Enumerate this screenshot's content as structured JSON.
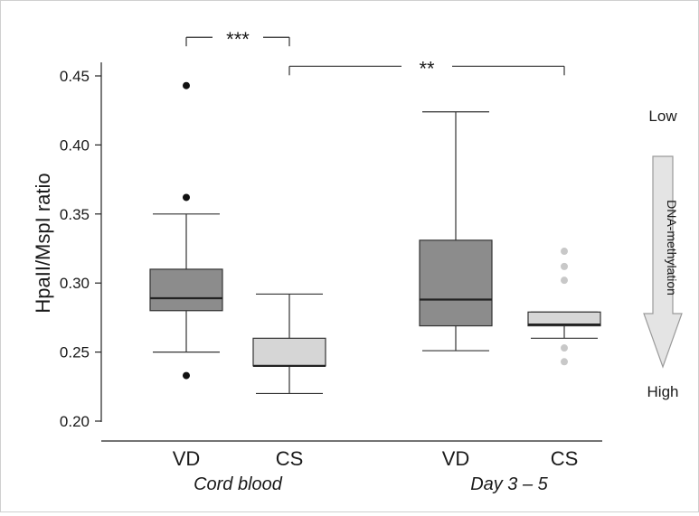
{
  "chart_data": {
    "type": "box",
    "ylabel": "HpaII/MspI ratio",
    "ylim": [
      0.2,
      0.45
    ],
    "yticks": [
      "0.45",
      "0.40",
      "0.35",
      "0.30",
      "0.25",
      "0.20"
    ],
    "groups": [
      {
        "label": "Cord blood",
        "categories": [
          "VD",
          "CS"
        ]
      },
      {
        "label": "Day 3 – 5",
        "categories": [
          "VD",
          "CS"
        ]
      }
    ],
    "boxes": [
      {
        "group": "Cord blood",
        "category": "VD",
        "color": "#8c8c8c",
        "whisker_low": 0.25,
        "q1": 0.28,
        "median": 0.289,
        "q3": 0.31,
        "whisker_high": 0.35,
        "outliers": [
          0.443,
          0.362,
          0.233
        ],
        "outlier_color": "#111111"
      },
      {
        "group": "Cord blood",
        "category": "CS",
        "color": "#d6d6d6",
        "whisker_low": 0.22,
        "q1": 0.24,
        "median": 0.24,
        "q3": 0.26,
        "whisker_high": 0.292,
        "outliers": [],
        "outlier_color": "#111111"
      },
      {
        "group": "Day 3 – 5",
        "category": "VD",
        "color": "#8c8c8c",
        "whisker_low": 0.251,
        "q1": 0.269,
        "median": 0.288,
        "q3": 0.331,
        "whisker_high": 0.424,
        "outliers": [],
        "outlier_color": "#111111"
      },
      {
        "group": "Day 3 – 5",
        "category": "CS",
        "color": "#d6d6d6",
        "whisker_low": 0.26,
        "q1": 0.269,
        "median": 0.27,
        "q3": 0.279,
        "whisker_high": 0.279,
        "outliers": [
          0.323,
          0.312,
          0.302,
          0.253,
          0.243
        ],
        "outlier_color": "#c8c8c8"
      }
    ],
    "significance": [
      {
        "label": "***",
        "from": 0,
        "to": 1,
        "level": 0.478
      },
      {
        "label": "**",
        "from": 1,
        "to": 3,
        "level": 0.457
      }
    ],
    "methylation_scale": {
      "top": "Low",
      "label": "DNA-methylation",
      "bottom": "High"
    }
  }
}
